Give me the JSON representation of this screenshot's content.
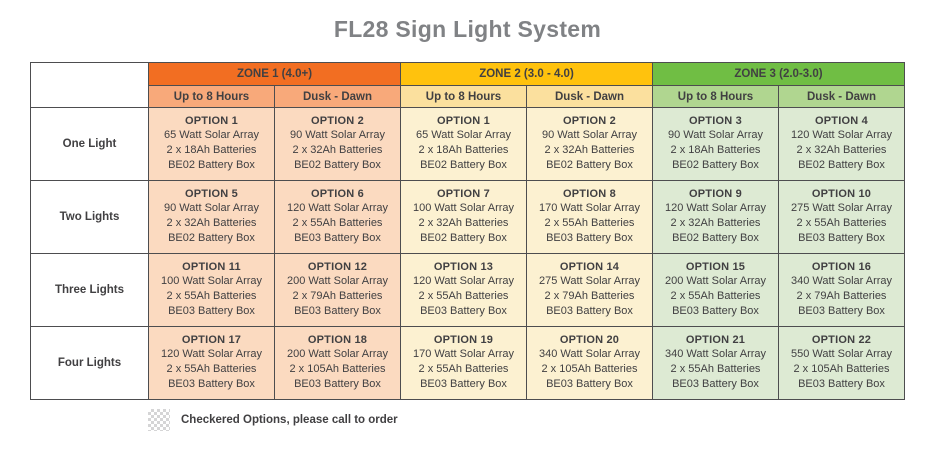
{
  "page_title": "FL28 Sign Light System",
  "colors": {
    "title_text": "#808285",
    "table_text": "#414042",
    "border": "#4d4d4f",
    "zone1_header": "#F26E22",
    "zone1_subheader": "#F8A97A",
    "zone1_cell": "#FBDAC0",
    "zone2_header": "#FFC20D",
    "zone2_subheader": "#FBE09E",
    "zone2_cell": "#FCF1D1",
    "zone3_header": "#70BE44",
    "zone3_subheader": "#B0D690",
    "zone3_cell": "#DDEAD3"
  },
  "chart_data": {
    "type": "table",
    "title": "FL28 Sign Light System",
    "zones": [
      {
        "label": "ZONE 1 (4.0+)",
        "periods": [
          "Up to 8 Hours",
          "Dusk - Dawn"
        ]
      },
      {
        "label": "ZONE 2 (3.0 - 4.0)",
        "periods": [
          "Up to 8 Hours",
          "Dusk - Dawn"
        ]
      },
      {
        "label": "ZONE 3 (2.0-3.0)",
        "periods": [
          "Up to 8 Hours",
          "Dusk - Dawn"
        ]
      }
    ],
    "row_labels": [
      "One Light",
      "Two Lights",
      "Three Lights",
      "Four Lights"
    ],
    "rows": [
      {
        "label": "One Light",
        "cells": [
          {
            "option": "OPTION 1",
            "solar_array": "65 Watt Solar Array",
            "batteries": "2 x 18Ah Batteries",
            "battery_box": "BE02 Battery Box",
            "checkered": false
          },
          {
            "option": "OPTION 2",
            "solar_array": "90 Watt Solar Array",
            "batteries": "2 x 32Ah Batteries",
            "battery_box": "BE02 Battery Box",
            "checkered": false
          },
          {
            "option": "OPTION 1",
            "solar_array": "65 Watt Solar Array",
            "batteries": "2 x 18Ah Batteries",
            "battery_box": "BE02 Battery Box",
            "checkered": false
          },
          {
            "option": "OPTION 2",
            "solar_array": "90 Watt Solar Array",
            "batteries": "2 x 32Ah Batteries",
            "battery_box": "BE02 Battery Box",
            "checkered": false
          },
          {
            "option": "OPTION 3",
            "solar_array": "90 Watt Solar Array",
            "batteries": "2 x 18Ah Batteries",
            "battery_box": "BE02 Battery Box",
            "checkered": false
          },
          {
            "option": "OPTION 4",
            "solar_array": "120 Watt Solar Array",
            "batteries": "2 x 32Ah Batteries",
            "battery_box": "BE02 Battery Box",
            "checkered": false
          }
        ]
      },
      {
        "label": "Two Lights",
        "cells": [
          {
            "option": "OPTION 5",
            "solar_array": "90 Watt Solar Array",
            "batteries": "2 x 32Ah Batteries",
            "battery_box": "BE02 Battery Box",
            "checkered": false
          },
          {
            "option": "OPTION 6",
            "solar_array": "120 Watt Solar Array",
            "batteries": "2 x 55Ah Batteries",
            "battery_box": "BE03 Battery Box",
            "checkered": false
          },
          {
            "option": "OPTION 7",
            "solar_array": "100 Watt Solar Array",
            "batteries": "2 x 32Ah Batteries",
            "battery_box": "BE02 Battery Box",
            "checkered": false
          },
          {
            "option": "OPTION 8",
            "solar_array": "170 Watt Solar Array",
            "batteries": "2 x 55Ah Batteries",
            "battery_box": "BE03 Battery Box",
            "checkered": false
          },
          {
            "option": "OPTION 9",
            "solar_array": "120 Watt Solar Array",
            "batteries": "2 x 32Ah Batteries",
            "battery_box": "BE02 Battery Box",
            "checkered": false
          },
          {
            "option": "OPTION 10",
            "solar_array": "275 Watt Solar Array",
            "batteries": "2 x 55Ah Batteries",
            "battery_box": "BE03 Battery Box",
            "checkered": true
          }
        ]
      },
      {
        "label": "Three Lights",
        "cells": [
          {
            "option": "OPTION 11",
            "solar_array": "100 Watt Solar Array",
            "batteries": "2 x 55Ah Batteries",
            "battery_box": "BE03 Battery Box",
            "checkered": false
          },
          {
            "option": "OPTION 12",
            "solar_array": "200 Watt Solar Array",
            "batteries": "2 x 79Ah Batteries",
            "battery_box": "BE03 Battery Box",
            "checkered": true
          },
          {
            "option": "OPTION 13",
            "solar_array": "120 Watt Solar Array",
            "batteries": "2 x 55Ah Batteries",
            "battery_box": "BE03 Battery Box",
            "checkered": false
          },
          {
            "option": "OPTION 14",
            "solar_array": "275 Watt Solar Array",
            "batteries": "2 x 79Ah Batteries",
            "battery_box": "BE03 Battery Box",
            "checkered": true
          },
          {
            "option": "OPTION 15",
            "solar_array": "200 Watt Solar Array",
            "batteries": "2 x 55Ah Batteries",
            "battery_box": "BE03 Battery Box",
            "checkered": true
          },
          {
            "option": "OPTION 16",
            "solar_array": "340 Watt Solar Array",
            "batteries": "2 x 79Ah Batteries",
            "battery_box": "BE03 Battery Box",
            "checkered": true
          }
        ]
      },
      {
        "label": "Four Lights",
        "cells": [
          {
            "option": "OPTION 17",
            "solar_array": "120 Watt Solar Array",
            "batteries": "2 x 55Ah Batteries",
            "battery_box": "BE03 Battery Box",
            "checkered": false
          },
          {
            "option": "OPTION 18",
            "solar_array": "200 Watt Solar Array",
            "batteries": "2 x 105Ah Batteries",
            "battery_box": "BE03 Battery Box",
            "checkered": true
          },
          {
            "option": "OPTION 19",
            "solar_array": "170 Watt Solar Array",
            "batteries": "2 x 55Ah Batteries",
            "battery_box": "BE03 Battery Box",
            "checkered": false
          },
          {
            "option": "OPTION 20",
            "solar_array": "340 Watt Solar Array",
            "batteries": "2 x 105Ah Batteries",
            "battery_box": "BE03 Battery Box",
            "checkered": true
          },
          {
            "option": "OPTION 21",
            "solar_array": "340 Watt Solar Array",
            "batteries": "2 x 55Ah Batteries",
            "battery_box": "BE03 Battery Box",
            "checkered": true
          },
          {
            "option": "OPTION 22",
            "solar_array": "550 Watt Solar Array",
            "batteries": "2 x 105Ah Batteries",
            "battery_box": "BE03 Battery Box",
            "checkered": true
          }
        ]
      }
    ],
    "footnote": "Checkered Options, please call to order"
  }
}
